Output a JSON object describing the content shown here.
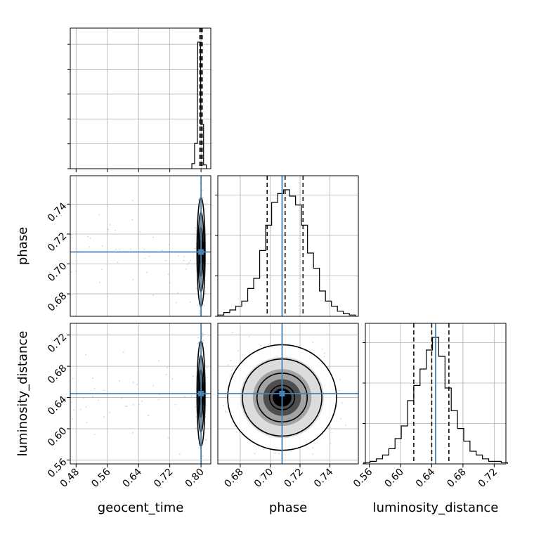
{
  "chart_data": {
    "type": "corner",
    "parameters": [
      "geocent_time",
      "phase",
      "luminosity_distance"
    ],
    "truths": {
      "geocent_time": 0.8,
      "phase": 0.708,
      "luminosity_distance": 0.645
    },
    "quantiles": {
      "geocent_time": [
        0.797,
        0.8,
        0.803
      ],
      "phase": [
        0.698,
        0.71,
        0.722
      ],
      "luminosity_distance": [
        0.617,
        0.64,
        0.662
      ]
    },
    "ranges": {
      "geocent_time": [
        0.465,
        0.825
      ],
      "phase": [
        0.665,
        0.759
      ],
      "luminosity_distance": [
        0.555,
        0.735
      ]
    },
    "ticks": {
      "geocent_time": [
        "0.48",
        "0.56",
        "0.64",
        "0.72",
        "0.80"
      ],
      "phase": [
        "0.68",
        "0.70",
        "0.72",
        "0.74"
      ],
      "luminosity_distance": [
        "0.56",
        "0.60",
        "0.64",
        "0.68",
        "0.72"
      ]
    },
    "histograms": {
      "geocent_time": {
        "x": [
          0.78,
          0.787,
          0.795,
          0.803,
          0.81
        ],
        "values": [
          0.04,
          0.2,
          1.0,
          0.35,
          0.03
        ]
      },
      "phase": {
        "x": [
          0.667,
          0.671,
          0.675,
          0.679,
          0.683,
          0.687,
          0.691,
          0.695,
          0.699,
          0.703,
          0.707,
          0.711,
          0.715,
          0.719,
          0.723,
          0.727,
          0.731,
          0.735,
          0.739,
          0.743,
          0.747,
          0.751,
          0.755
        ],
        "values": [
          0.01,
          0.03,
          0.05,
          0.08,
          0.12,
          0.22,
          0.3,
          0.52,
          0.72,
          0.9,
          0.97,
          1.0,
          0.95,
          0.88,
          0.72,
          0.5,
          0.38,
          0.2,
          0.12,
          0.08,
          0.04,
          0.02,
          0.01
        ]
      },
      "luminosity_distance": {
        "x": [
          0.557,
          0.565,
          0.573,
          0.581,
          0.589,
          0.597,
          0.605,
          0.613,
          0.621,
          0.629,
          0.637,
          0.645,
          0.653,
          0.661,
          0.669,
          0.677,
          0.685,
          0.693,
          0.701,
          0.709,
          0.717,
          0.725,
          0.733
        ],
        "values": [
          0.01,
          0.02,
          0.04,
          0.07,
          0.12,
          0.2,
          0.3,
          0.5,
          0.62,
          0.75,
          0.9,
          1.0,
          0.85,
          0.6,
          0.42,
          0.28,
          0.18,
          0.1,
          0.07,
          0.04,
          0.02,
          0.02,
          0.01
        ]
      }
    },
    "pairs": [
      {
        "x": "geocent_time",
        "y": "phase",
        "center": [
          0.8,
          0.708
        ],
        "spread": [
          0.004,
          0.014
        ]
      },
      {
        "x": "geocent_time",
        "y": "luminosity_distance",
        "center": [
          0.8,
          0.645
        ],
        "spread": [
          0.004,
          0.026
        ]
      },
      {
        "x": "phase",
        "y": "luminosity_distance",
        "center": [
          0.708,
          0.64
        ],
        "spread": [
          0.014,
          0.026
        ]
      }
    ],
    "colors": {
      "truth": "#4682b4",
      "hist": "#000000",
      "points": "#9a9a9a",
      "grid": "#b0b0b0"
    }
  }
}
